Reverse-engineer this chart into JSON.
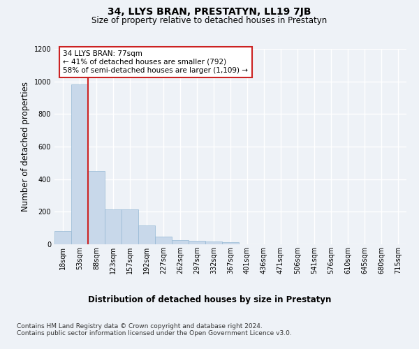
{
  "title": "34, LLYS BRAN, PRESTATYN, LL19 7JB",
  "subtitle": "Size of property relative to detached houses in Prestatyn",
  "xlabel": "Distribution of detached houses by size in Prestatyn",
  "ylabel": "Number of detached properties",
  "categories": [
    "18sqm",
    "53sqm",
    "88sqm",
    "123sqm",
    "157sqm",
    "192sqm",
    "227sqm",
    "262sqm",
    "297sqm",
    "332sqm",
    "367sqm",
    "401sqm",
    "436sqm",
    "471sqm",
    "506sqm",
    "541sqm",
    "576sqm",
    "610sqm",
    "645sqm",
    "680sqm",
    "715sqm"
  ],
  "values": [
    80,
    980,
    450,
    215,
    215,
    115,
    47,
    25,
    22,
    18,
    12,
    0,
    0,
    0,
    0,
    0,
    0,
    0,
    0,
    0,
    0
  ],
  "bar_color": "#c8d8ea",
  "bar_edge_color": "#95b8d4",
  "vline_color": "#cc2222",
  "vline_x": 1.5,
  "annotation_text": "34 LLYS BRAN: 77sqm\n← 41% of detached houses are smaller (792)\n58% of semi-detached houses are larger (1,109) →",
  "annotation_box_edgecolor": "#cc2222",
  "ylim": [
    0,
    1200
  ],
  "yticks": [
    0,
    200,
    400,
    600,
    800,
    1000,
    1200
  ],
  "footnote": "Contains HM Land Registry data © Crown copyright and database right 2024.\nContains public sector information licensed under the Open Government Licence v3.0.",
  "bg_color": "#eef2f7",
  "grid_color": "#ffffff",
  "title_fontsize": 10,
  "subtitle_fontsize": 8.5,
  "axlabel_fontsize": 8.5,
  "tick_fontsize": 7,
  "footnote_fontsize": 6.5
}
